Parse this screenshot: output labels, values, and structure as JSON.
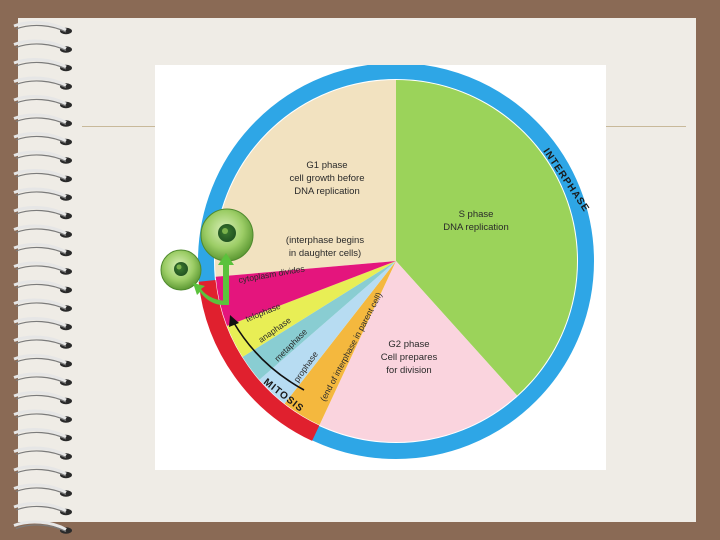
{
  "colors": {
    "background": "#8a6a55",
    "paper": "#efece6",
    "ring_interphase": "#2ea6e6",
    "ring_mitosis": "#e0202e",
    "g1": "#f2e2c0",
    "s": "#9bd35a",
    "g2": "#fad4de",
    "cytokinesis": "#e4157d",
    "telophase": "#e8ee55",
    "anaphase": "#89cdd2",
    "metaphase": "#b7dcf2",
    "prophase": "#f4b83e",
    "arrow": "#5bc23c",
    "cell": "#8ec45a"
  },
  "diagram": {
    "ring_labels": {
      "interphase": "INTERPHASE",
      "mitosis": "MITOSIS"
    },
    "segments": {
      "g1": {
        "title": "G1 phase",
        "lines": [
          "cell growth before",
          "DNA replication"
        ],
        "note_lines": [
          "(interphase begins",
          "in daughter cells)"
        ]
      },
      "s": {
        "title": "S phase",
        "lines": [
          "DNA replication"
        ]
      },
      "g2": {
        "title": "G2 phase",
        "lines": [
          "Cell prepares",
          "for division"
        ],
        "note": "(end of interphase in parent cell)"
      },
      "cytokinesis": {
        "label": "cytoplasm divides"
      },
      "telophase": {
        "label": "telophase"
      },
      "anaphase": {
        "label": "anaphase"
      },
      "metaphase": {
        "label": "metaphase"
      },
      "prophase": {
        "label": "prophase"
      }
    },
    "icons": {
      "daughter_cell": "daughter-cell-icon",
      "division_arrow": "division-arrow-icon"
    }
  }
}
